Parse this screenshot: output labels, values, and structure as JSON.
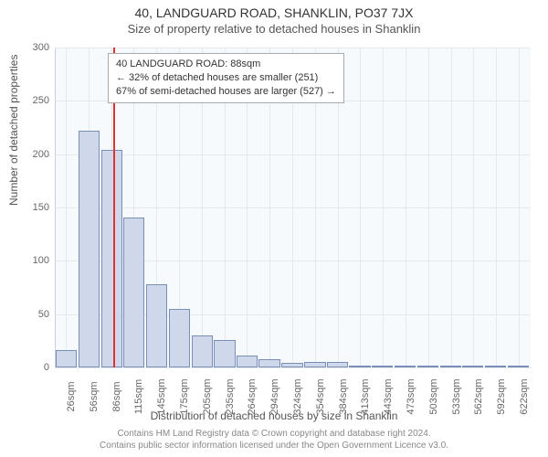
{
  "title": "40, LANDGUARD ROAD, SHANKLIN, PO37 7JX",
  "subtitle": "Size of property relative to detached houses in Shanklin",
  "ylabel": "Number of detached properties",
  "xlabel": "Distribution of detached houses by size in Shanklin",
  "footer1": "Contains HM Land Registry data © Crown copyright and database right 2024.",
  "footer2": "Contains public sector information licensed under the Open Government Licence v3.0.",
  "annotation": {
    "line1": "40 LANDGUARD ROAD: 88sqm",
    "line2": "← 32% of detached houses are smaller (251)",
    "line3": "67% of semi-detached houses are larger (527) →"
  },
  "chart": {
    "type": "histogram",
    "bar_fill": "#cfd8eb",
    "bar_stroke": "#7a8fb8",
    "background_color": "#f7fafd",
    "grid_color": "#e5e9ef",
    "marker_color": "#d33",
    "marker_value": 88,
    "xlim": [
      11,
      637
    ],
    "ylim": [
      0,
      300
    ],
    "yticks": [
      0,
      50,
      100,
      150,
      200,
      250,
      300
    ],
    "xtick_labels": [
      "26sqm",
      "56sqm",
      "86sqm",
      "115sqm",
      "145sqm",
      "175sqm",
      "205sqm",
      "235sqm",
      "264sqm",
      "294sqm",
      "324sqm",
      "354sqm",
      "384sqm",
      "413sqm",
      "443sqm",
      "473sqm",
      "503sqm",
      "533sqm",
      "562sqm",
      "592sqm",
      "622sqm"
    ],
    "xtick_positions": [
      26,
      56,
      86,
      115,
      145,
      175,
      205,
      235,
      264,
      294,
      324,
      354,
      384,
      413,
      443,
      473,
      503,
      533,
      562,
      592,
      622
    ],
    "bars": [
      {
        "center": 26,
        "value": 16
      },
      {
        "center": 56,
        "value": 222
      },
      {
        "center": 86,
        "value": 204
      },
      {
        "center": 115,
        "value": 141
      },
      {
        "center": 145,
        "value": 78
      },
      {
        "center": 175,
        "value": 55
      },
      {
        "center": 205,
        "value": 30
      },
      {
        "center": 235,
        "value": 26
      },
      {
        "center": 264,
        "value": 11
      },
      {
        "center": 294,
        "value": 8
      },
      {
        "center": 324,
        "value": 4
      },
      {
        "center": 354,
        "value": 5
      },
      {
        "center": 384,
        "value": 5
      },
      {
        "center": 413,
        "value": 2
      },
      {
        "center": 443,
        "value": 0
      },
      {
        "center": 473,
        "value": 2
      },
      {
        "center": 503,
        "value": 1
      },
      {
        "center": 533,
        "value": 0
      },
      {
        "center": 562,
        "value": 1
      },
      {
        "center": 592,
        "value": 1
      },
      {
        "center": 622,
        "value": 1
      }
    ],
    "bar_width_dataunits": 28
  }
}
